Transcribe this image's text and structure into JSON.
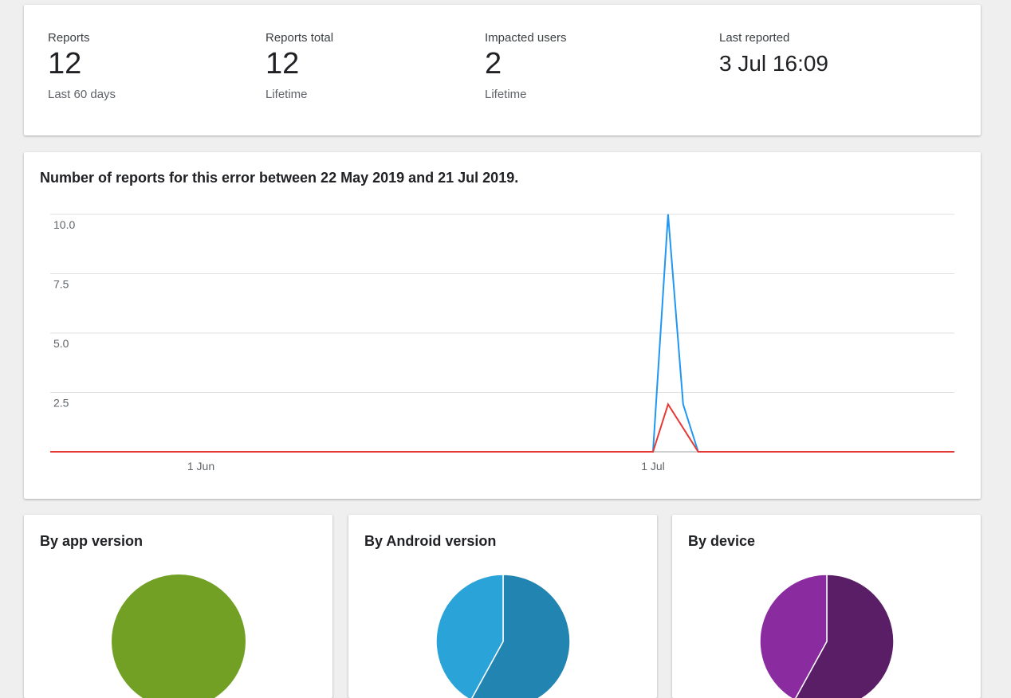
{
  "stats": {
    "reports": {
      "label": "Reports",
      "value": "12",
      "sub": "Last 60 days"
    },
    "total": {
      "label": "Reports total",
      "value": "12",
      "sub": "Lifetime"
    },
    "users": {
      "label": "Impacted users",
      "value": "2",
      "sub": "Lifetime"
    },
    "last": {
      "label": "Last reported",
      "value": "3 Jul 16:09"
    }
  },
  "trend": {
    "title": "Number of reports for this error between 22 May 2019 and 21 Jul 2019."
  },
  "chart_data": [
    {
      "type": "line",
      "title": "Number of reports for this error between 22 May 2019 and 21 Jul 2019.",
      "x_range": [
        "2019-05-22",
        "2019-07-21"
      ],
      "ylim": [
        0,
        10
      ],
      "y_ticks": [
        "2.5",
        "5.0",
        "7.5",
        "10.0"
      ],
      "x_ticks": [
        {
          "label": "1 Jun",
          "date": "2019-06-01"
        },
        {
          "label": "1 Jul",
          "date": "2019-07-01"
        }
      ],
      "grid": true,
      "series": [
        {
          "color": "#2196f3",
          "points": [
            [
              "2019-05-22",
              0
            ],
            [
              "2019-07-01",
              0
            ],
            [
              "2019-07-02",
              10
            ],
            [
              "2019-07-03",
              2
            ],
            [
              "2019-07-04",
              0
            ],
            [
              "2019-07-21",
              0
            ]
          ]
        },
        {
          "color": "#e53935",
          "points": [
            [
              "2019-05-22",
              0
            ],
            [
              "2019-07-01",
              0
            ],
            [
              "2019-07-02",
              2
            ],
            [
              "2019-07-04",
              0
            ],
            [
              "2019-07-21",
              0
            ]
          ]
        }
      ]
    },
    {
      "type": "pie",
      "title": "By app version",
      "slices": [
        {
          "value": 100,
          "color": "#72a024"
        }
      ]
    },
    {
      "type": "pie",
      "title": "By Android version",
      "slices": [
        {
          "value": 58,
          "color": "#2284b1"
        },
        {
          "value": 42,
          "color": "#29a3d8"
        }
      ]
    },
    {
      "type": "pie",
      "title": "By device",
      "slices": [
        {
          "value": 58,
          "color": "#5a1e66"
        },
        {
          "value": 42,
          "color": "#8a2ba0"
        }
      ]
    }
  ]
}
